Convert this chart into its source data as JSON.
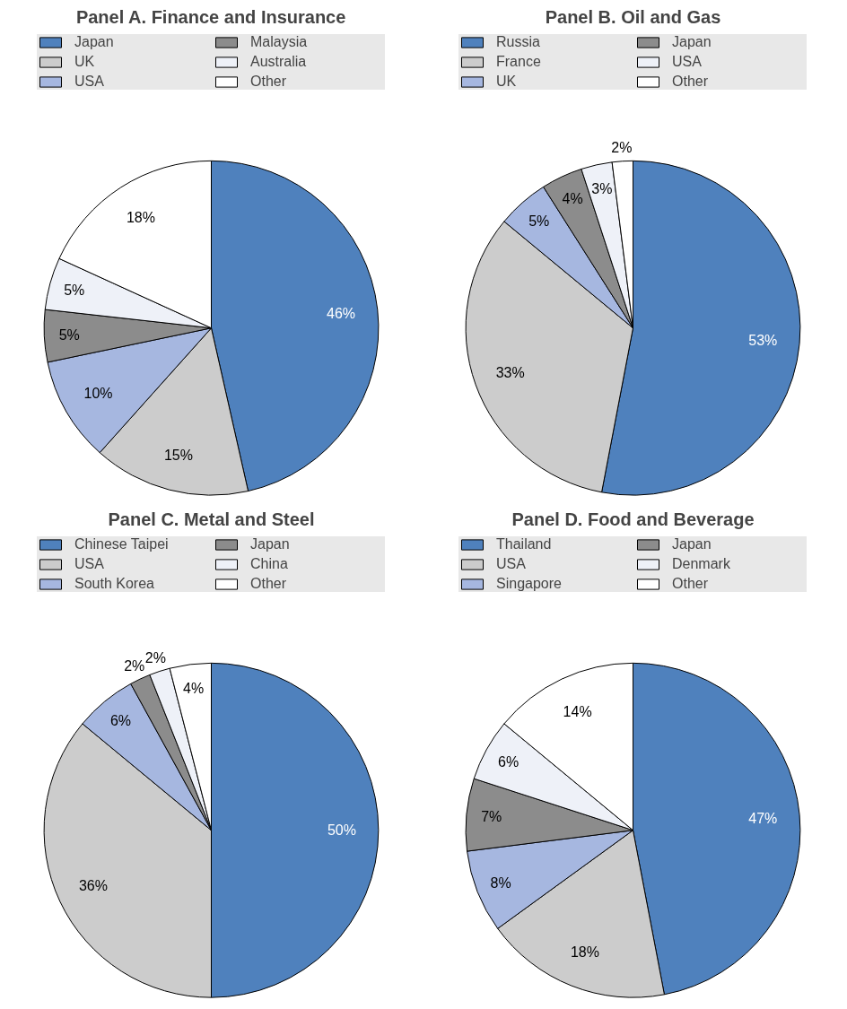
{
  "chart_data": [
    {
      "type": "pie",
      "title": "Panel A. Finance and Insurance",
      "categories": [
        "Japan",
        "UK",
        "USA",
        "Malaysia",
        "Australia",
        "Other"
      ],
      "values": [
        46,
        15,
        10,
        5,
        5,
        18
      ],
      "colors": [
        "#4f81bd",
        "#cccccc",
        "#a6b7e0",
        "#8c8c8c",
        "#eef1f8",
        "#ffffff"
      ],
      "value_labels": [
        "46%",
        "15%",
        "10%",
        "5%",
        "5%",
        "18%"
      ],
      "legend": "top"
    },
    {
      "type": "pie",
      "title": "Panel B. Oil and Gas",
      "categories": [
        "Russia",
        "France",
        "UK",
        "Japan",
        "USA",
        "Other"
      ],
      "values": [
        53,
        33,
        5,
        4,
        3,
        2
      ],
      "colors": [
        "#4f81bd",
        "#cccccc",
        "#a6b7e0",
        "#8c8c8c",
        "#eef1f8",
        "#ffffff"
      ],
      "value_labels": [
        "53%",
        "33%",
        "5%",
        "4%",
        "3%",
        "2%"
      ],
      "legend": "top"
    },
    {
      "type": "pie",
      "title": "Panel C. Metal and Steel",
      "categories": [
        "Chinese Taipei",
        "USA",
        "South Korea",
        "Japan",
        "China",
        "Other"
      ],
      "values": [
        50,
        36,
        6,
        2,
        2,
        4
      ],
      "colors": [
        "#4f81bd",
        "#cccccc",
        "#a6b7e0",
        "#8c8c8c",
        "#eef1f8",
        "#ffffff"
      ],
      "value_labels": [
        "50%",
        "36%",
        "6%",
        "2%",
        "2%",
        "4%"
      ],
      "legend": "top"
    },
    {
      "type": "pie",
      "title": "Panel D. Food and Beverage",
      "categories": [
        "Thailand",
        "USA",
        "Singapore",
        "Japan",
        "Denmark",
        "Other"
      ],
      "values": [
        47,
        18,
        8,
        7,
        6,
        14
      ],
      "colors": [
        "#4f81bd",
        "#cccccc",
        "#a6b7e0",
        "#8c8c8c",
        "#eef1f8",
        "#ffffff"
      ],
      "value_labels": [
        "47%",
        "18%",
        "8%",
        "7%",
        "6%",
        "14%"
      ],
      "legend": "top"
    }
  ]
}
